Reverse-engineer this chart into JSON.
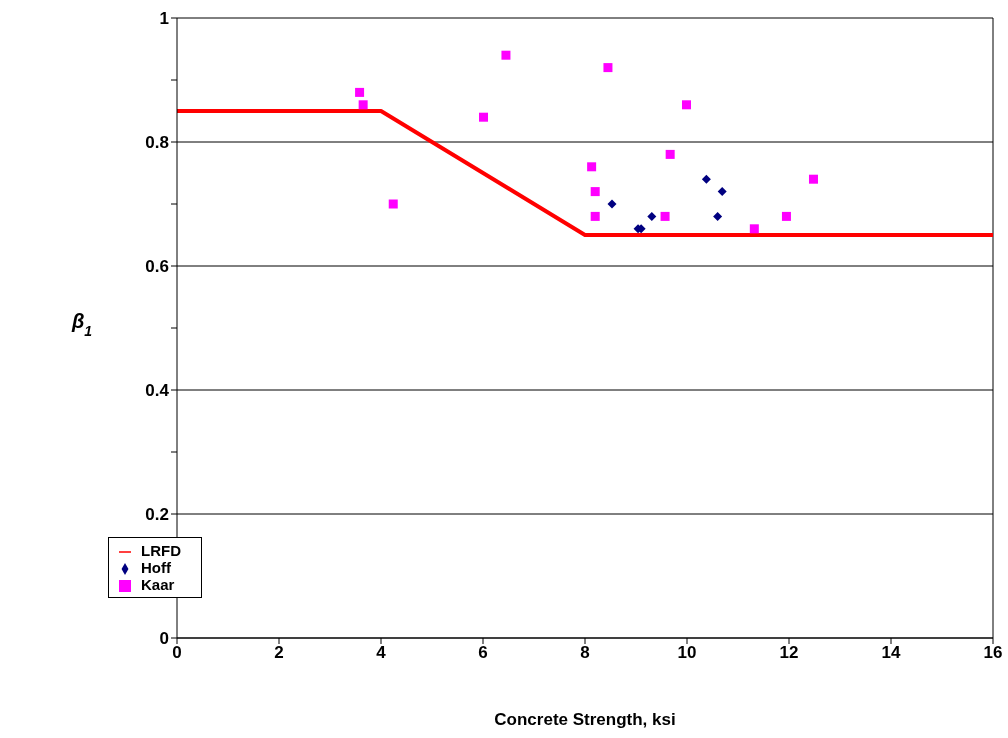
{
  "chart_data": {
    "type": "scatter",
    "xlabel": "Concrete Strength, ksi",
    "ylabel": "β$_{1}$",
    "xlim": [
      0,
      16
    ],
    "xticks": [
      0,
      2,
      4,
      6,
      8,
      10,
      12,
      14,
      16
    ],
    "ylim": [
      0,
      1
    ],
    "yticks": [
      0,
      {
        "value": 0.1,
        "label": null
      },
      0.2,
      {
        "value": 0.3,
        "label": null
      },
      0.4,
      {
        "value": 0.5,
        "label": null
      },
      0.6,
      {
        "value": 0.7,
        "label": null
      },
      0.8,
      {
        "value": 0.9,
        "label": null
      },
      1
    ],
    "grid": "y",
    "legend": "bottom left",
    "series": [
      {
        "name": "LRFD",
        "type": "line",
        "color": "#ff0000",
        "marker": "none",
        "line_style": "solid",
        "x": [
          0,
          4,
          8,
          16
        ],
        "values": [
          0.85,
          0.85,
          0.65,
          0.65
        ]
      },
      {
        "name": "Hoff",
        "color": "#000080",
        "marker": "diamond",
        "x": [
          8.53,
          9.04,
          9.1,
          9.31,
          10.38,
          10.69,
          10.6
        ],
        "values": [
          0.7,
          0.66,
          0.66,
          0.68,
          0.74,
          0.72,
          0.68
        ]
      },
      {
        "name": "Kaar",
        "color": "#ff00ff",
        "marker": "square",
        "x": [
          3.58,
          3.65,
          4.24,
          6.01,
          6.45,
          8.13,
          8.2,
          8.2,
          8.45,
          9.67,
          9.57,
          9.99,
          11.32,
          11.95,
          12.48
        ],
        "values": [
          0.88,
          0.86,
          0.7,
          0.84,
          0.94,
          0.76,
          0.72,
          0.68,
          0.92,
          0.78,
          0.68,
          0.86,
          0.66,
          0.68,
          0.74
        ]
      }
    ]
  }
}
